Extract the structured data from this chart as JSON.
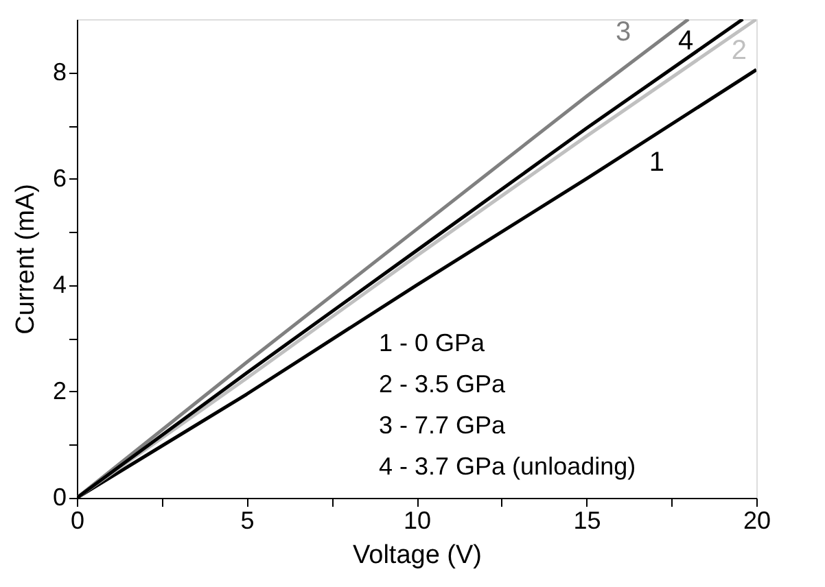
{
  "chart_data": {
    "type": "line",
    "xlabel": "Voltage (V)",
    "ylabel": "Current (mA)",
    "xlim": [
      0,
      20
    ],
    "ylim": [
      0,
      9
    ],
    "xticks": [
      0,
      {
        "value": 2.5,
        "label": null
      },
      5,
      {
        "value": 7.5,
        "label": null
      },
      10,
      {
        "value": 12.5,
        "label": null
      },
      15,
      {
        "value": 17.5,
        "label": null
      },
      20
    ],
    "yticks": [
      0,
      {
        "value": 1,
        "label": null
      },
      2,
      {
        "value": 3,
        "label": null
      },
      4,
      {
        "value": 5,
        "label": null
      },
      6,
      {
        "value": 7,
        "label": null
      },
      8
    ],
    "marker": "none",
    "line_style": "solid",
    "series": [
      {
        "name": "1",
        "color": "#000000",
        "x": [
          0,
          5,
          10,
          15,
          20
        ],
        "values": [
          0,
          1.95,
          4.0,
          6.0,
          8.05
        ]
      },
      {
        "name": "2",
        "color": "#c0c0c0",
        "x": [
          0,
          5,
          10,
          15,
          20
        ],
        "values": [
          0,
          2.25,
          4.55,
          6.8,
          9.0
        ]
      },
      {
        "name": "3",
        "color": "#808080",
        "x": [
          0,
          5,
          10,
          15,
          18
        ],
        "values": [
          0,
          2.55,
          5.05,
          7.55,
          9.0
        ]
      },
      {
        "name": "4",
        "color": "#000000",
        "x": [
          0,
          5,
          10,
          15,
          19.6
        ],
        "values": [
          0,
          2.35,
          4.65,
          6.95,
          9.0
        ]
      }
    ],
    "annotations": [
      "1 - 0 GPa",
      "2 - 3.5 GPa",
      "3 - 7.7 GPa",
      "4 - 3.7 GPa (unloading)"
    ]
  }
}
